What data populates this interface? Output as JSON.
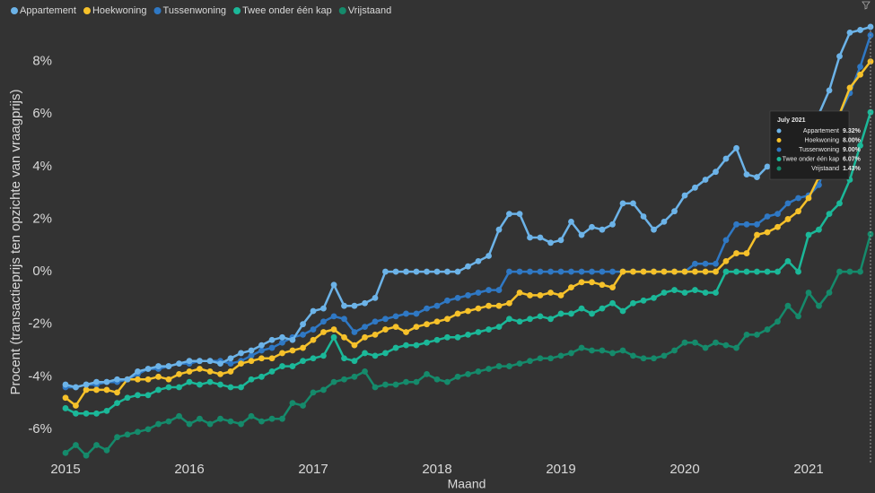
{
  "chart_data": {
    "type": "line",
    "x_label": "Maand",
    "y_label": "Procent (transactieprijs ten opzichte van vraagprijs)",
    "x": [
      2015,
      2015.083,
      2015.167,
      2015.25,
      2015.333,
      2015.417,
      2015.5,
      2015.583,
      2015.667,
      2015.75,
      2015.833,
      2015.917,
      2016,
      2016.083,
      2016.167,
      2016.25,
      2016.333,
      2016.417,
      2016.5,
      2016.583,
      2016.667,
      2016.75,
      2016.833,
      2016.917,
      2017,
      2017.083,
      2017.167,
      2017.25,
      2017.333,
      2017.417,
      2017.5,
      2017.583,
      2017.667,
      2017.75,
      2017.833,
      2017.917,
      2018,
      2018.083,
      2018.167,
      2018.25,
      2018.333,
      2018.417,
      2018.5,
      2018.583,
      2018.667,
      2018.75,
      2018.833,
      2018.917,
      2019,
      2019.083,
      2019.167,
      2019.25,
      2019.333,
      2019.417,
      2019.5,
      2019.583,
      2019.667,
      2019.75,
      2019.833,
      2019.917,
      2020,
      2020.083,
      2020.167,
      2020.25,
      2020.333,
      2020.417,
      2020.5,
      2020.583,
      2020.667,
      2020.75,
      2020.833,
      2020.917,
      2021,
      2021.083,
      2021.167,
      2021.25,
      2021.333,
      2021.417,
      2021.5
    ],
    "series": [
      {
        "name": "Appartement",
        "color": "#6cb3e8",
        "values": [
          -4.3,
          -4.4,
          -4.3,
          -4.2,
          -4.2,
          -4.1,
          -4.1,
          -3.8,
          -3.7,
          -3.6,
          -3.6,
          -3.5,
          -3.4,
          -3.4,
          -3.4,
          -3.5,
          -3.3,
          -3.1,
          -3.0,
          -2.8,
          -2.6,
          -2.5,
          -2.6,
          -2.0,
          -1.5,
          -1.4,
          -0.5,
          -1.3,
          -1.3,
          -1.2,
          -1.0,
          0,
          0,
          0,
          0,
          0,
          0,
          0,
          0,
          0.2,
          0.4,
          0.6,
          1.6,
          2.2,
          2.2,
          1.3,
          1.3,
          1.1,
          1.2,
          1.9,
          1.4,
          1.7,
          1.6,
          1.8,
          2.6,
          2.6,
          2.1,
          1.6,
          1.9,
          2.3,
          2.9,
          3.2,
          3.5,
          3.8,
          4.3,
          4.7,
          3.7,
          3.6,
          4.0,
          4.0,
          4.4,
          4.8,
          5.4,
          6.0,
          6.9,
          8.2,
          9.1,
          9.2,
          9.32
        ]
      },
      {
        "name": "Hoekwoning",
        "color": "#f6c12a",
        "values": [
          -4.8,
          -5.1,
          -4.5,
          -4.5,
          -4.5,
          -4.6,
          -4.1,
          -4.1,
          -4.1,
          -4.0,
          -4.1,
          -3.9,
          -3.8,
          -3.7,
          -3.8,
          -3.9,
          -3.8,
          -3.5,
          -3.4,
          -3.3,
          -3.3,
          -3.1,
          -3.0,
          -2.9,
          -2.6,
          -2.3,
          -2.2,
          -2.5,
          -2.8,
          -2.5,
          -2.4,
          -2.2,
          -2.1,
          -2.3,
          -2.1,
          -2.0,
          -1.9,
          -1.8,
          -1.6,
          -1.5,
          -1.4,
          -1.3,
          -1.3,
          -1.2,
          -0.8,
          -0.9,
          -0.9,
          -0.8,
          -0.9,
          -0.6,
          -0.4,
          -0.4,
          -0.5,
          -0.6,
          0,
          0,
          0,
          0,
          0,
          0,
          0,
          0,
          0,
          0,
          0.4,
          0.7,
          0.7,
          1.4,
          1.5,
          1.7,
          2.0,
          2.3,
          2.8,
          3.6,
          4.8,
          6.0,
          7.0,
          7.5,
          8.0
        ]
      },
      {
        "name": "Tussenwoning",
        "color": "#2f78c4",
        "values": [
          -4.4,
          -4.4,
          -4.3,
          -4.3,
          -4.2,
          -4.2,
          -4.1,
          -3.9,
          -3.7,
          -3.7,
          -3.6,
          -3.5,
          -3.5,
          -3.4,
          -3.4,
          -3.4,
          -3.5,
          -3.4,
          -3.2,
          -3.0,
          -2.9,
          -2.7,
          -2.5,
          -2.4,
          -2.2,
          -1.9,
          -1.7,
          -1.8,
          -2.3,
          -2.1,
          -1.9,
          -1.8,
          -1.7,
          -1.6,
          -1.6,
          -1.4,
          -1.3,
          -1.1,
          -1.0,
          -0.9,
          -0.8,
          -0.7,
          -0.7,
          0,
          0,
          0,
          0,
          0,
          0,
          0,
          0,
          0,
          0,
          0,
          0,
          0,
          0,
          0,
          0,
          0,
          0,
          0.3,
          0.3,
          0.3,
          1.2,
          1.8,
          1.8,
          1.8,
          2.1,
          2.2,
          2.6,
          2.8,
          2.9,
          3.3,
          4.6,
          6.0,
          6.8,
          7.8,
          9.0
        ]
      },
      {
        "name": "Twee onder één kap",
        "color": "#1bb899",
        "values": [
          -5.2,
          -5.4,
          -5.4,
          -5.4,
          -5.3,
          -5.0,
          -4.8,
          -4.7,
          -4.7,
          -4.5,
          -4.4,
          -4.4,
          -4.2,
          -4.3,
          -4.2,
          -4.3,
          -4.4,
          -4.4,
          -4.1,
          -4.0,
          -3.8,
          -3.6,
          -3.6,
          -3.4,
          -3.3,
          -3.2,
          -2.5,
          -3.3,
          -3.4,
          -3.1,
          -3.2,
          -3.1,
          -2.9,
          -2.8,
          -2.8,
          -2.7,
          -2.6,
          -2.5,
          -2.5,
          -2.4,
          -2.3,
          -2.2,
          -2.1,
          -1.8,
          -1.9,
          -1.8,
          -1.7,
          -1.8,
          -1.6,
          -1.6,
          -1.4,
          -1.6,
          -1.4,
          -1.2,
          -1.5,
          -1.2,
          -1.1,
          -1.0,
          -0.8,
          -0.7,
          -0.8,
          -0.7,
          -0.8,
          -0.8,
          0,
          0,
          0,
          0,
          0,
          0,
          0.4,
          0,
          1.4,
          1.6,
          2.2,
          2.6,
          3.5,
          4.8,
          6.07
        ]
      },
      {
        "name": "Vrijstaand",
        "color": "#158a6b",
        "values": [
          -6.9,
          -6.6,
          -7.0,
          -6.6,
          -6.8,
          -6.3,
          -6.2,
          -6.1,
          -6.0,
          -5.8,
          -5.7,
          -5.5,
          -5.8,
          -5.6,
          -5.8,
          -5.6,
          -5.7,
          -5.8,
          -5.5,
          -5.7,
          -5.6,
          -5.6,
          -5.0,
          -5.1,
          -4.6,
          -4.5,
          -4.2,
          -4.1,
          -4.0,
          -3.8,
          -4.4,
          -4.3,
          -4.3,
          -4.2,
          -4.2,
          -3.9,
          -4.1,
          -4.2,
          -4.0,
          -3.9,
          -3.8,
          -3.7,
          -3.6,
          -3.6,
          -3.5,
          -3.4,
          -3.3,
          -3.3,
          -3.2,
          -3.1,
          -2.9,
          -3.0,
          -3.0,
          -3.1,
          -3.0,
          -3.2,
          -3.3,
          -3.3,
          -3.2,
          -3.0,
          -2.7,
          -2.7,
          -2.9,
          -2.7,
          -2.8,
          -2.9,
          -2.4,
          -2.4,
          -2.2,
          -1.9,
          -1.3,
          -1.7,
          -0.8,
          -1.3,
          -0.8,
          0,
          0,
          0,
          1.43
        ]
      }
    ],
    "xlim": [
      2015,
      2021.5
    ],
    "xticks": [
      2015,
      2016,
      2017,
      2018,
      2019,
      2020,
      2021
    ],
    "ylim": [
      -7.3,
      9.4
    ],
    "yticks": [
      {
        "value": -6,
        "label": "-6%"
      },
      {
        "value": -4,
        "label": "-4%"
      },
      {
        "value": -2,
        "label": "-2%"
      },
      {
        "value": 0,
        "label": "0%"
      },
      {
        "value": 2,
        "label": "2%"
      },
      {
        "value": 4,
        "label": "4%"
      },
      {
        "value": 6,
        "label": "6%"
      },
      {
        "value": 8,
        "label": "8%"
      }
    ],
    "grid": false,
    "legend": "top-left",
    "tooltip": {
      "title": "July 2021",
      "labels": [
        "9.32%",
        "8.00%",
        "9.00%",
        "6.07%",
        "1.43%"
      ]
    }
  }
}
